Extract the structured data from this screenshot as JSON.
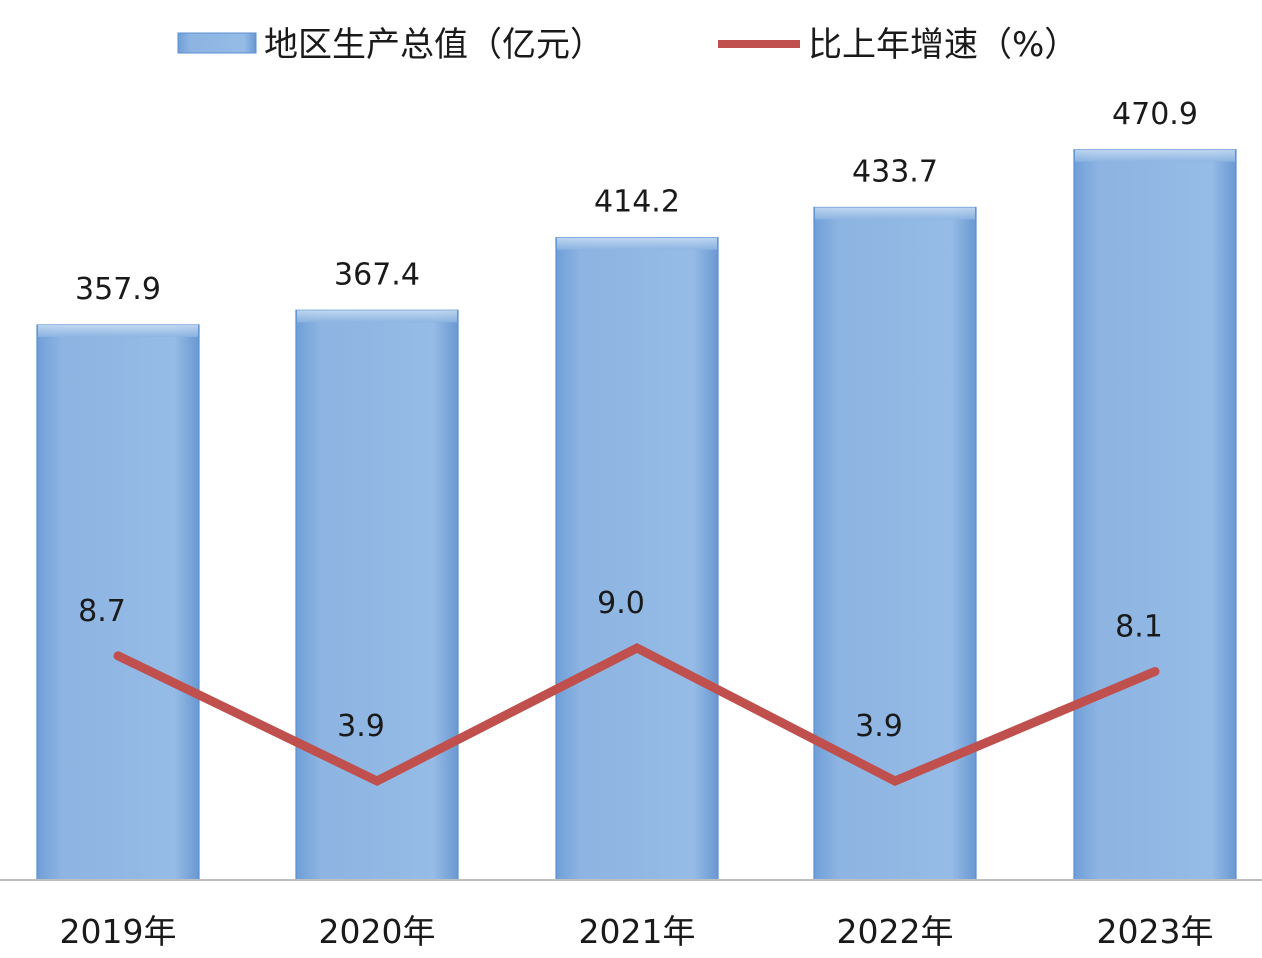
{
  "chart_data": {
    "type": "bar",
    "categories": [
      "2019年",
      "2020年",
      "2021年",
      "2022年",
      "2023年"
    ],
    "series": [
      {
        "name": "地区生产总值（亿元）",
        "type": "bar",
        "axis": "left",
        "values": [
          357.9,
          367.4,
          414.2,
          433.7,
          470.9
        ],
        "color": "#8db4e2"
      },
      {
        "name": "比上年增速（%）",
        "type": "line",
        "axis": "right",
        "values": [
          8.7,
          3.9,
          9.0,
          3.9,
          8.1
        ],
        "color": "#c0504d"
      }
    ],
    "bar_labels": [
      "357.9",
      "367.4",
      "414.2",
      "433.7",
      "470.9"
    ],
    "line_labels": [
      "8.7",
      "3.9",
      "9.0",
      "3.9",
      "8.1"
    ],
    "ylim": [
      0,
      500
    ],
    "ylim_right": [
      0,
      20
    ],
    "legend_position": "top",
    "grid": false
  },
  "colors": {
    "bar_fill": "#8db4e2",
    "bar_edge": "#5b8fd0",
    "line": "#c0504d",
    "axis": "#bfbfbf"
  }
}
